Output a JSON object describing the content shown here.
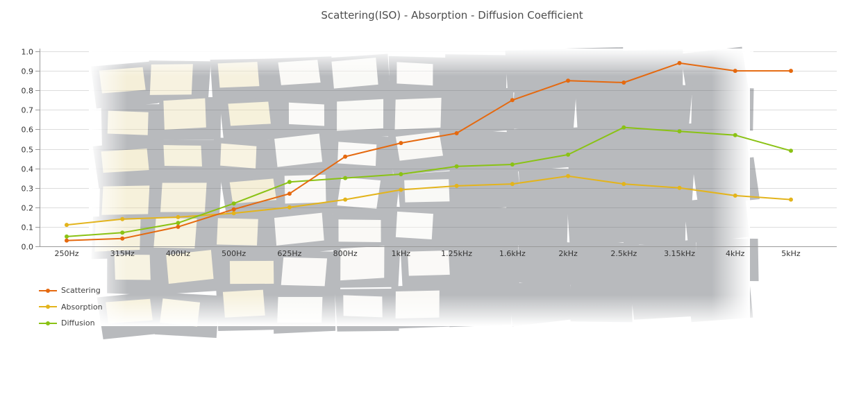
{
  "title": "Scattering(ISO) - Absorption - Diffusion Coefficient",
  "colors": {
    "grid": "#dcdcdc",
    "axis": "#999999",
    "tick_label": "#333333",
    "title_text": "#4d4d4d",
    "legend_label": "#404040",
    "background_tint_left": "#e8d9a0",
    "background_tint_middle": "#f1efe8",
    "background_tint_right": "#e69c63",
    "background_shadow": "#585c64"
  },
  "chart_data": {
    "type": "line",
    "title": "Scattering(ISO) - Absorption - Diffusion Coefficient",
    "xlabel": "",
    "ylabel": "",
    "ylim": [
      0,
      1
    ],
    "ytick_step": 0.1,
    "yticks": [
      "0.0",
      "0.1",
      "0.2",
      "0.3",
      "0.4",
      "0.5",
      "0.6",
      "0.7",
      "0.8",
      "0.9",
      "1.0"
    ],
    "grid": "horizontal",
    "legend_position": "bottom-left",
    "legend_marker": "line-dot",
    "categories": [
      "250Hz",
      "315Hz",
      "400Hz",
      "500Hz",
      "625Hz",
      "800Hz",
      "1kHz",
      "1.25kHz",
      "1.6kHz",
      "2kHz",
      "2.5kHz",
      "3.15kHz",
      "4kHz",
      "5kHz"
    ],
    "series": [
      {
        "name": "Scattering",
        "color": "#e5690f",
        "values": [
          0.03,
          0.04,
          0.1,
          0.19,
          0.27,
          0.46,
          0.53,
          0.58,
          0.75,
          0.85,
          0.84,
          0.94,
          0.9,
          0.9
        ]
      },
      {
        "name": "Absorption",
        "color": "#e3b41c",
        "values": [
          0.11,
          0.14,
          0.15,
          0.17,
          0.2,
          0.24,
          0.29,
          0.31,
          0.32,
          0.36,
          0.32,
          0.3,
          0.26,
          0.24
        ]
      },
      {
        "name": "Diffusion",
        "color": "#8ac214",
        "values": [
          0.05,
          0.07,
          0.12,
          0.22,
          0.33,
          0.35,
          0.37,
          0.41,
          0.42,
          0.47,
          0.61,
          0.59,
          0.57,
          0.49
        ]
      }
    ]
  }
}
